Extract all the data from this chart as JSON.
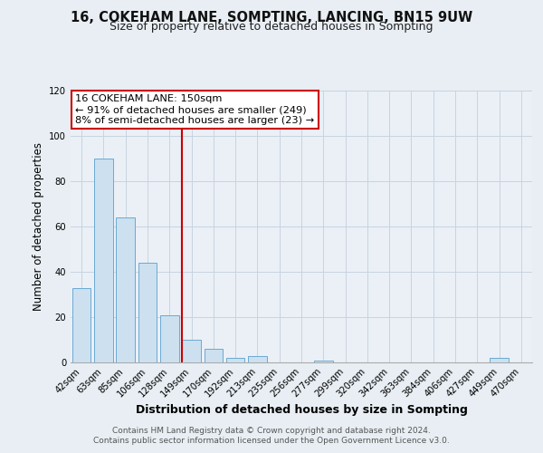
{
  "title": "16, COKEHAM LANE, SOMPTING, LANCING, BN15 9UW",
  "subtitle": "Size of property relative to detached houses in Sompting",
  "xlabel": "Distribution of detached houses by size in Sompting",
  "ylabel": "Number of detached properties",
  "bar_labels": [
    "42sqm",
    "63sqm",
    "85sqm",
    "106sqm",
    "128sqm",
    "149sqm",
    "170sqm",
    "192sqm",
    "213sqm",
    "235sqm",
    "256sqm",
    "277sqm",
    "299sqm",
    "320sqm",
    "342sqm",
    "363sqm",
    "384sqm",
    "406sqm",
    "427sqm",
    "449sqm",
    "470sqm"
  ],
  "bar_values": [
    33,
    90,
    64,
    44,
    21,
    10,
    6,
    2,
    3,
    0,
    0,
    1,
    0,
    0,
    0,
    0,
    0,
    0,
    0,
    2,
    0
  ],
  "bar_color": "#cce0f0",
  "bar_edge_color": "#6aaad4",
  "vline_x_index": 5,
  "vline_color": "#cc0000",
  "annotation_title": "16 COKEHAM LANE: 150sqm",
  "annotation_line1": "← 91% of detached houses are smaller (249)",
  "annotation_line2": "8% of semi-detached houses are larger (23) →",
  "annotation_box_color": "#ffffff",
  "annotation_box_edge": "#cc0000",
  "ylim": [
    0,
    120
  ],
  "yticks": [
    0,
    20,
    40,
    60,
    80,
    100,
    120
  ],
  "footer1": "Contains HM Land Registry data © Crown copyright and database right 2024.",
  "footer2": "Contains public sector information licensed under the Open Government Licence v3.0.",
  "background_color": "#e8eef4",
  "plot_background": "#eaf0f6",
  "grid_color": "#c8d4e0"
}
